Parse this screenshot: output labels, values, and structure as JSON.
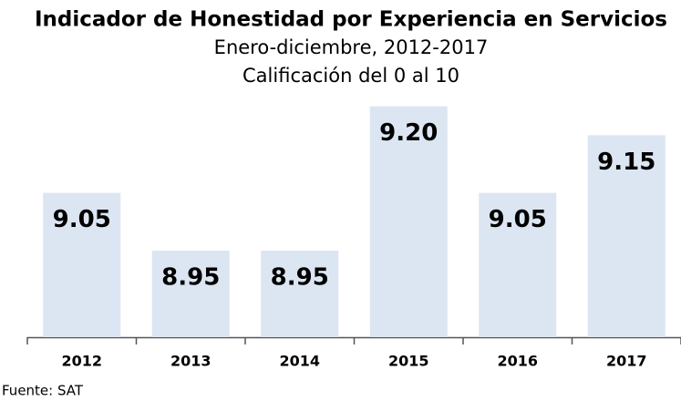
{
  "chart_data": {
    "type": "bar",
    "title": "Indicador de Honestidad por Experiencia en Servicios",
    "subtitle": "Enero-diciembre, 2012-2017",
    "subtitle2": "Calificación del 0 al 10",
    "categories": [
      "2012",
      "2013",
      "2014",
      "2015",
      "2016",
      "2017"
    ],
    "values": [
      9.05,
      8.95,
      8.95,
      9.2,
      9.05,
      9.15
    ],
    "value_labels": [
      "9.05",
      "8.95",
      "8.95",
      "9.20",
      "9.05",
      "9.15"
    ],
    "color": "#dce6f2",
    "ylim": [
      8.8,
      9.25
    ],
    "source": "Fuente: SAT"
  }
}
